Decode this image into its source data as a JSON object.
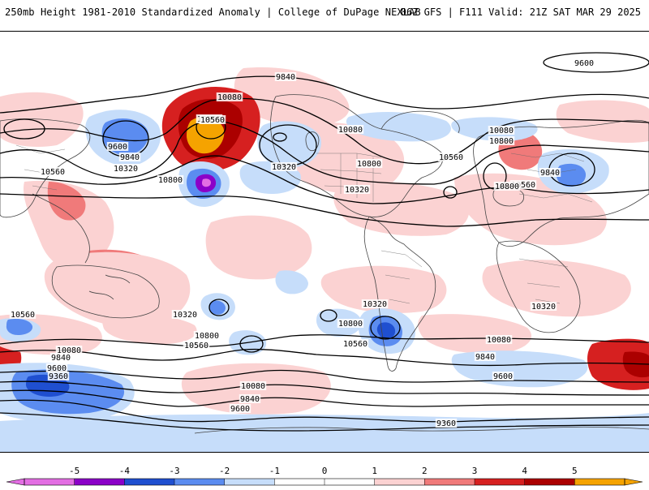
{
  "header": {
    "left_title": "250mb Height 1981-2010 Standardized Anomaly | College of DuPage NEXLAB",
    "right_title": "06Z GFS | F111 Valid: 21Z SAT MAR 29 2025"
  },
  "map": {
    "contour_labels": [
      "9600",
      "9840",
      "10080",
      "10560",
      "9600",
      "9840",
      "10320",
      "10560",
      "10800",
      "10320",
      "10080",
      "10560",
      "10800",
      "10320",
      "10560",
      "10800",
      "10080",
      "9840",
      "10560",
      "10800",
      "10560",
      "10320",
      "10800",
      "10560",
      "10320",
      "10800",
      "10560",
      "10320",
      "10080",
      "9840",
      "9600",
      "10080",
      "9840",
      "9600",
      "9360",
      "10080",
      "9840",
      "9600",
      "9360"
    ],
    "anomaly_colors": {
      "neg5": "#e36ee3",
      "neg4": "#8b00c8",
      "neg3": "#1f4fd0",
      "neg2": "#5b8cf0",
      "neg1": "#c6ddfa",
      "pos1": "#fbd2d2",
      "pos2": "#f07a7a",
      "pos3": "#d62020",
      "pos4": "#ab0000",
      "pos5": "#f5a300"
    }
  },
  "colorbar": {
    "ticks": [
      "-5",
      "-4",
      "-3",
      "-2",
      "-1",
      "0",
      "1",
      "2",
      "3",
      "4",
      "5"
    ],
    "colors": [
      "#e36ee3",
      "#8b00c8",
      "#1f4fd0",
      "#5b8cf0",
      "#c6ddfa",
      "#ffffff",
      "#ffffff",
      "#fbd2d2",
      "#f07a7a",
      "#d62020",
      "#ab0000",
      "#f5a300"
    ]
  }
}
